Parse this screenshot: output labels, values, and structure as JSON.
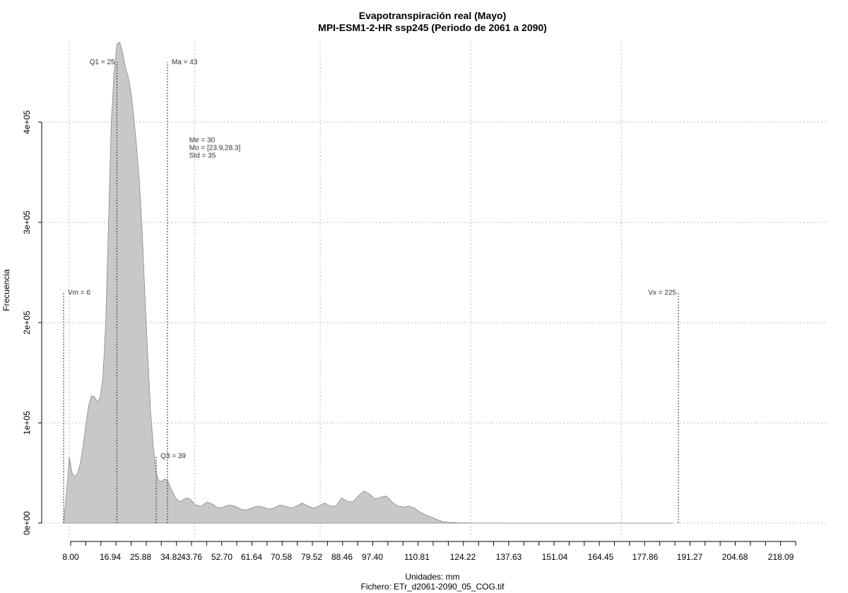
{
  "chart_data": {
    "type": "area",
    "title": "Evapotranspiración real (Mayo)",
    "subtitle": "MPI-ESM1-2-HR ssp245 (Periodo de 2061 a 2090)",
    "xlabel": "Unidades: mm",
    "caption": "Fichero: ETr_d2061-2090_05_COG.tif",
    "ylabel": "Frecuencia",
    "xlim": [
      6,
      225
    ],
    "ylim": [
      0,
      480000
    ],
    "x_ticks": [
      "8.00",
      "16.94",
      "25.88",
      "34.82",
      "43.76",
      "52.70",
      "61.64",
      "70.58",
      "79.52",
      "88.46",
      "97.40",
      "110.81",
      "124.22",
      "137.63",
      "151.04",
      "164.45",
      "177.86",
      "191.27",
      "204.68",
      "218.09"
    ],
    "y_ticks": [
      "0e+00",
      "1e+05",
      "2e+05",
      "3e+05",
      "4e+05"
    ],
    "y_tick_values": [
      0,
      100000,
      200000,
      300000,
      400000
    ],
    "grid": true,
    "x_grid_values": [
      8,
      52.7,
      97.4,
      151.04,
      204.68
    ],
    "y_grid_values": [
      0,
      100000,
      200000,
      300000,
      400000
    ],
    "fill_color": "#c8c8c8",
    "line_color": "#888888",
    "x": [
      6,
      7.5,
      8,
      9,
      10,
      11,
      12,
      13,
      14,
      15,
      16,
      17,
      18,
      19,
      20,
      21,
      22,
      23,
      24,
      25,
      26,
      27,
      28,
      29,
      30,
      31,
      32,
      33,
      34,
      35,
      36,
      37,
      38,
      39,
      40,
      41,
      42,
      43,
      44,
      45,
      46,
      47,
      48,
      49,
      50,
      51,
      53,
      55,
      57,
      59,
      61,
      63,
      65,
      67,
      69,
      71,
      73,
      75,
      77,
      79,
      81,
      83,
      85,
      87,
      89,
      91,
      93,
      95,
      97,
      99,
      101,
      103,
      105,
      107,
      109,
      111,
      113,
      115,
      117,
      119,
      121,
      123,
      125,
      127,
      129,
      131,
      133,
      135,
      137,
      139,
      141,
      143,
      145,
      147,
      149,
      151,
      153,
      155,
      157,
      159,
      161,
      163,
      165,
      168,
      172,
      180,
      190,
      200,
      210,
      218,
      223
    ],
    "values": [
      0,
      45000,
      66000,
      50000,
      46000,
      50000,
      60000,
      78000,
      100000,
      118000,
      127000,
      126000,
      121000,
      125000,
      145000,
      200000,
      300000,
      400000,
      450000,
      478000,
      482000,
      470000,
      455000,
      445000,
      430000,
      405000,
      375000,
      340000,
      290000,
      225000,
      165000,
      110000,
      75000,
      50000,
      42000,
      42000,
      44000,
      43000,
      36000,
      30000,
      25000,
      22000,
      22000,
      24000,
      25000,
      24000,
      18000,
      17000,
      21000,
      19000,
      15000,
      16000,
      18000,
      17000,
      14000,
      13000,
      15000,
      17000,
      16000,
      14000,
      15000,
      18000,
      17000,
      15000,
      17000,
      20000,
      17000,
      15000,
      17000,
      20000,
      17000,
      17000,
      25000,
      22000,
      21000,
      27000,
      32000,
      29000,
      24000,
      26000,
      27000,
      21000,
      17000,
      16000,
      17000,
      15000,
      11000,
      8000,
      6000,
      3500,
      1500,
      800,
      500,
      300,
      200,
      150,
      100,
      80,
      60,
      50,
      40,
      30,
      20,
      15,
      10,
      5,
      3,
      2,
      1,
      0,
      0
    ],
    "annotations": [
      {
        "label": "Vm = 6",
        "x": 6,
        "line_top": 230000,
        "label_y": 230000,
        "anchor": "start"
      },
      {
        "label": "Q1 = 25",
        "x": 25,
        "line_top": 460000,
        "label_y": 460000,
        "anchor": "end"
      },
      {
        "label": "Q3 = 39",
        "x": 39,
        "line_top": 67000,
        "label_y": 67000,
        "anchor": "start"
      },
      {
        "label": "Ma = 43",
        "x": 43,
        "line_top": 460000,
        "label_y": 460000,
        "anchor": "start"
      },
      {
        "label": "Vx = 225",
        "x": 225,
        "line_top": 230000,
        "label_y": 230000,
        "anchor": "end"
      }
    ],
    "stats_block": {
      "x": 52,
      "y": 380000,
      "lines": [
        "Me = 30",
        "Mo = [23.9,28.3]",
        "Std = 35"
      ]
    }
  }
}
